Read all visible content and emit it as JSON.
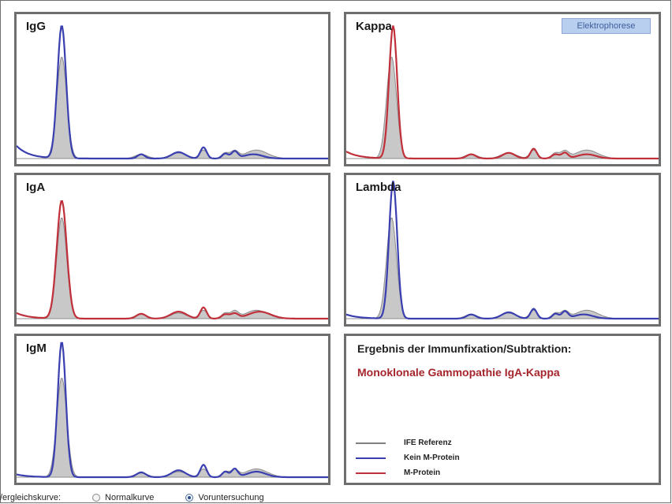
{
  "panels": [
    {
      "id": "igg",
      "label": "IgG",
      "curve": "Kein M-Protein"
    },
    {
      "id": "kappa",
      "label": "Kappa",
      "curve": "M-Protein"
    },
    {
      "id": "iga",
      "label": "IgA",
      "curve": "M-Protein"
    },
    {
      "id": "lambda",
      "label": "Lambda",
      "curve": "Kein M-Protein"
    },
    {
      "id": "igm",
      "label": "IgM",
      "curve": "Kein M-Protein"
    }
  ],
  "elektrophorese_button": "Elektrophorese",
  "result": {
    "title": "Ergebnis der Immunfixation/Subtraktion:",
    "value": "Monoklonale Gammopathie IgA-Kappa"
  },
  "legend": [
    {
      "label": "IFE Referenz",
      "color": "#808080"
    },
    {
      "label": "Kein M-Protein",
      "color": "#3a3fb0"
    },
    {
      "label": "M-Protein",
      "color": "#c0303a"
    }
  ],
  "footer": {
    "label": "/ergleichskurve:",
    "options": [
      {
        "label": "Normalkurve",
        "selected": false
      },
      {
        "label": "Voruntersuchung",
        "selected": true
      }
    ]
  },
  "colors": {
    "reference_fill": "#c8c8c8",
    "reference_stroke": "#8c8c8c",
    "no_m_protein": "#3a3fb0",
    "m_protein": "#c0303a",
    "result_text": "#a5252c"
  }
}
